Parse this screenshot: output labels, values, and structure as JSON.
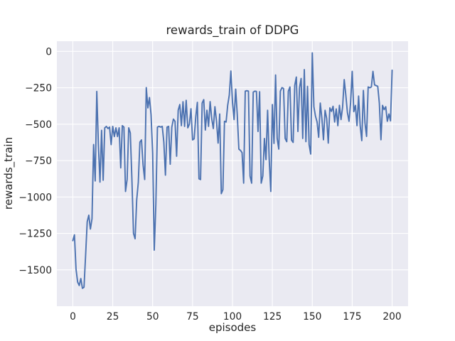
{
  "figure": {
    "background": "#ffffff"
  },
  "chart_data": {
    "type": "line",
    "title": "rewards_train of DDPG",
    "xlabel": "episodes",
    "ylabel": "rewards_train",
    "xlim": [
      -10,
      210
    ],
    "ylim": [
      -1750,
      70
    ],
    "x_ticks": [
      0,
      25,
      50,
      75,
      100,
      125,
      150,
      175,
      200
    ],
    "y_ticks": [
      0,
      -250,
      -500,
      -750,
      -1000,
      -1250,
      -1500
    ],
    "grid": true,
    "legend": "none",
    "style": {
      "axes_background": "#eaeaf2",
      "grid_color": "#ffffff",
      "line_color": "#4c72b0",
      "text_color": "#262626",
      "line_width": 1.9
    },
    "series": [
      {
        "name": "rewards_train",
        "x_start": 0,
        "x_step": 1,
        "values": [
          -1300,
          -1260,
          -1496,
          -1584,
          -1608,
          -1560,
          -1627,
          -1620,
          -1400,
          -1170,
          -1125,
          -1220,
          -1150,
          -640,
          -890,
          -275,
          -640,
          -898,
          -542,
          -885,
          -525,
          -515,
          -530,
          -520,
          -640,
          -515,
          -585,
          -525,
          -585,
          -525,
          -800,
          -510,
          -520,
          -962,
          -880,
          -525,
          -560,
          -880,
          -1250,
          -1287,
          -1020,
          -900,
          -623,
          -608,
          -780,
          -880,
          -249,
          -388,
          -317,
          -436,
          -700,
          -1365,
          -1050,
          -520,
          -515,
          -520,
          -515,
          -623,
          -850,
          -520,
          -515,
          -775,
          -520,
          -465,
          -480,
          -720,
          -404,
          -365,
          -510,
          -346,
          -515,
          -336,
          -525,
          -500,
          -394,
          -608,
          -600,
          -450,
          -350,
          -875,
          -880,
          -355,
          -331,
          -540,
          -404,
          -515,
          -345,
          -462,
          -530,
          -380,
          -480,
          -630,
          -430,
          -977,
          -950,
          -480,
          -485,
          -370,
          -300,
          -135,
          -347,
          -468,
          -259,
          -435,
          -671,
          -680,
          -695,
          -905,
          -273,
          -270,
          -273,
          -856,
          -905,
          -280,
          -273,
          -275,
          -550,
          -277,
          -905,
          -856,
          -598,
          -744,
          -404,
          -740,
          -962,
          -365,
          -632,
          -162,
          -598,
          -671,
          -273,
          -249,
          -255,
          -598,
          -620,
          -273,
          -244,
          -610,
          -625,
          -234,
          -176,
          -550,
          -249,
          -186,
          -598,
          -125,
          -620,
          -240,
          -640,
          -705,
          -10,
          -380,
          -445,
          -485,
          -590,
          -355,
          -460,
          -607,
          -404,
          -460,
          -630,
          -388,
          -412,
          -377,
          -485,
          -395,
          -510,
          -370,
          -468,
          -380,
          -194,
          -300,
          -420,
          -480,
          -350,
          -137,
          -414,
          -371,
          -510,
          -307,
          -510,
          -613,
          -268,
          -492,
          -584,
          -244,
          -250,
          -244,
          -137,
          -230,
          -235,
          -240,
          -356,
          -607,
          -371,
          -400,
          -380,
          -480,
          -430,
          -477,
          -129
        ]
      }
    ]
  }
}
